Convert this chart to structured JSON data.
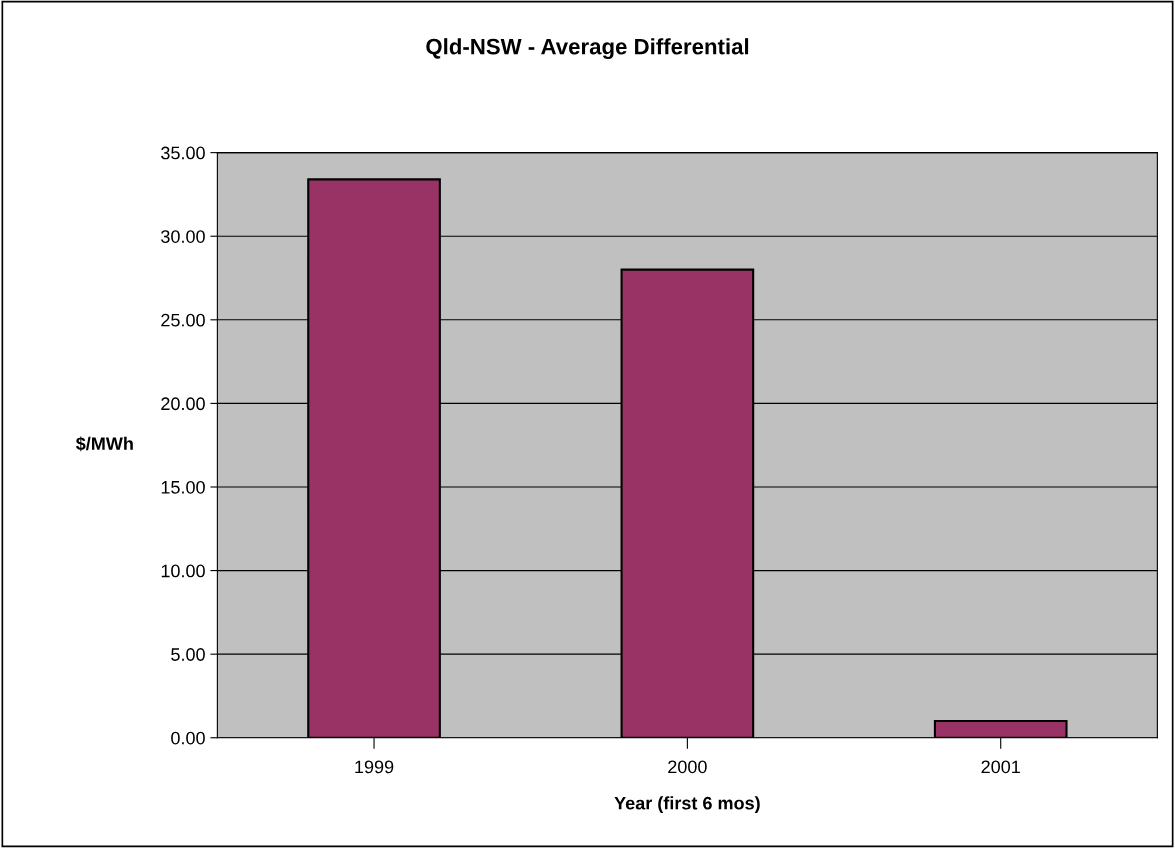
{
  "chart_data": {
    "type": "bar",
    "title": "Qld-NSW - Average Differential",
    "xlabel": "Year (first 6 mos)",
    "ylabel": "$/MWh",
    "categories": [
      "1999",
      "2000",
      "2001"
    ],
    "values": [
      33.4,
      28.0,
      1.0
    ],
    "color": "#993366",
    "ylim": [
      0,
      35
    ],
    "yticks": [
      {
        "value": 0,
        "label": "0.00"
      },
      {
        "value": 5,
        "label": "5.00"
      },
      {
        "value": 10,
        "label": "10.00"
      },
      {
        "value": 15,
        "label": "15.00"
      },
      {
        "value": 20,
        "label": "20.00"
      },
      {
        "value": 25,
        "label": "25.00"
      },
      {
        "value": 30,
        "label": "30.00"
      },
      {
        "value": 35,
        "label": "35.00"
      }
    ],
    "grid": "y"
  }
}
